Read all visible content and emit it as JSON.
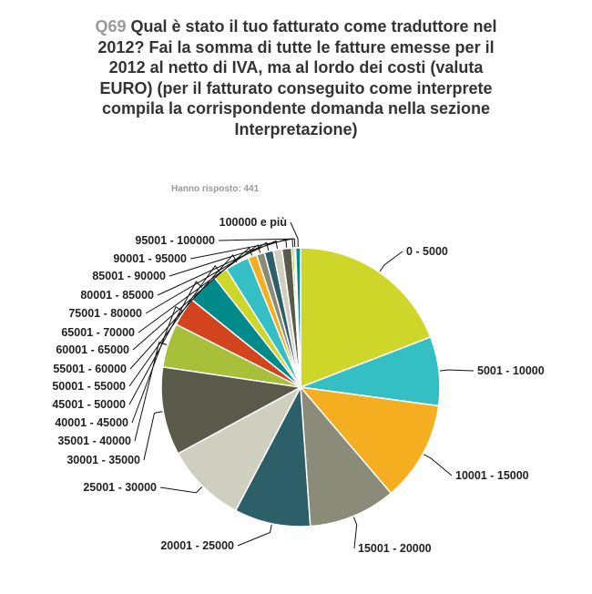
{
  "header": {
    "question_number": "Q69",
    "question_text": "Qual è stato il tuo fatturato come traduttore nel 2012? Fai la somma di tutte le fatture emesse per il 2012 al netto di IVA, ma al lordo dei costi (valuta EURO) (per il fatturato conseguito come interprete compila la corrispondente domanda nella sezione Interpretazione)",
    "answered": "Hanno risposto: 441"
  },
  "chart_data": {
    "type": "pie",
    "title": "Qual è stato il tuo fatturato come traduttore nel 2012? Fai la somma di tutte le fatture emesse per il 2012 al netto di IVA, ma al lordo dei costi (valuta EURO) (per il fatturato conseguito come interprete compila la corrispondente domanda nella sezione Interpretazione)",
    "categories": [
      "0 - 5000",
      "5001 - 10000",
      "10001 - 15000",
      "15001 - 20000",
      "20001 - 25000",
      "25001 - 30000",
      "30001 - 35000",
      "35001 - 40000",
      "40001 - 45000",
      "45001 - 50000",
      "50001 - 55000",
      "55001 - 60000",
      "60001 - 65000",
      "65001 - 70000",
      "75001 - 80000",
      "80001 - 85000",
      "85001 - 90000",
      "90001 - 95000",
      "95001 - 100000",
      "100000 e più"
    ],
    "values": [
      20.6,
      8.6,
      12.5,
      10.9,
      9.5,
      10.1,
      11.0,
      5.5,
      3.6,
      3.9,
      1.8,
      3.0,
      1.1,
      1.0,
      1.1,
      1.1,
      1.2,
      0.3,
      0.2,
      0.6
    ],
    "colors": [
      "#cfd62a",
      "#33bfc3",
      "#f6ae21",
      "#8b8b7a",
      "#2d5f69",
      "#cfcfc0",
      "#5a5a4a",
      "#a8bf3a",
      "#d2441e",
      "#008a8a",
      "#cfd62a",
      "#33bfc3",
      "#f6ae21",
      "#8b8b7a",
      "#2d5f69",
      "#cfcfc0",
      "#5a5a4a",
      "#a8bf3a",
      "#d2441e",
      "#008a8a"
    ]
  }
}
